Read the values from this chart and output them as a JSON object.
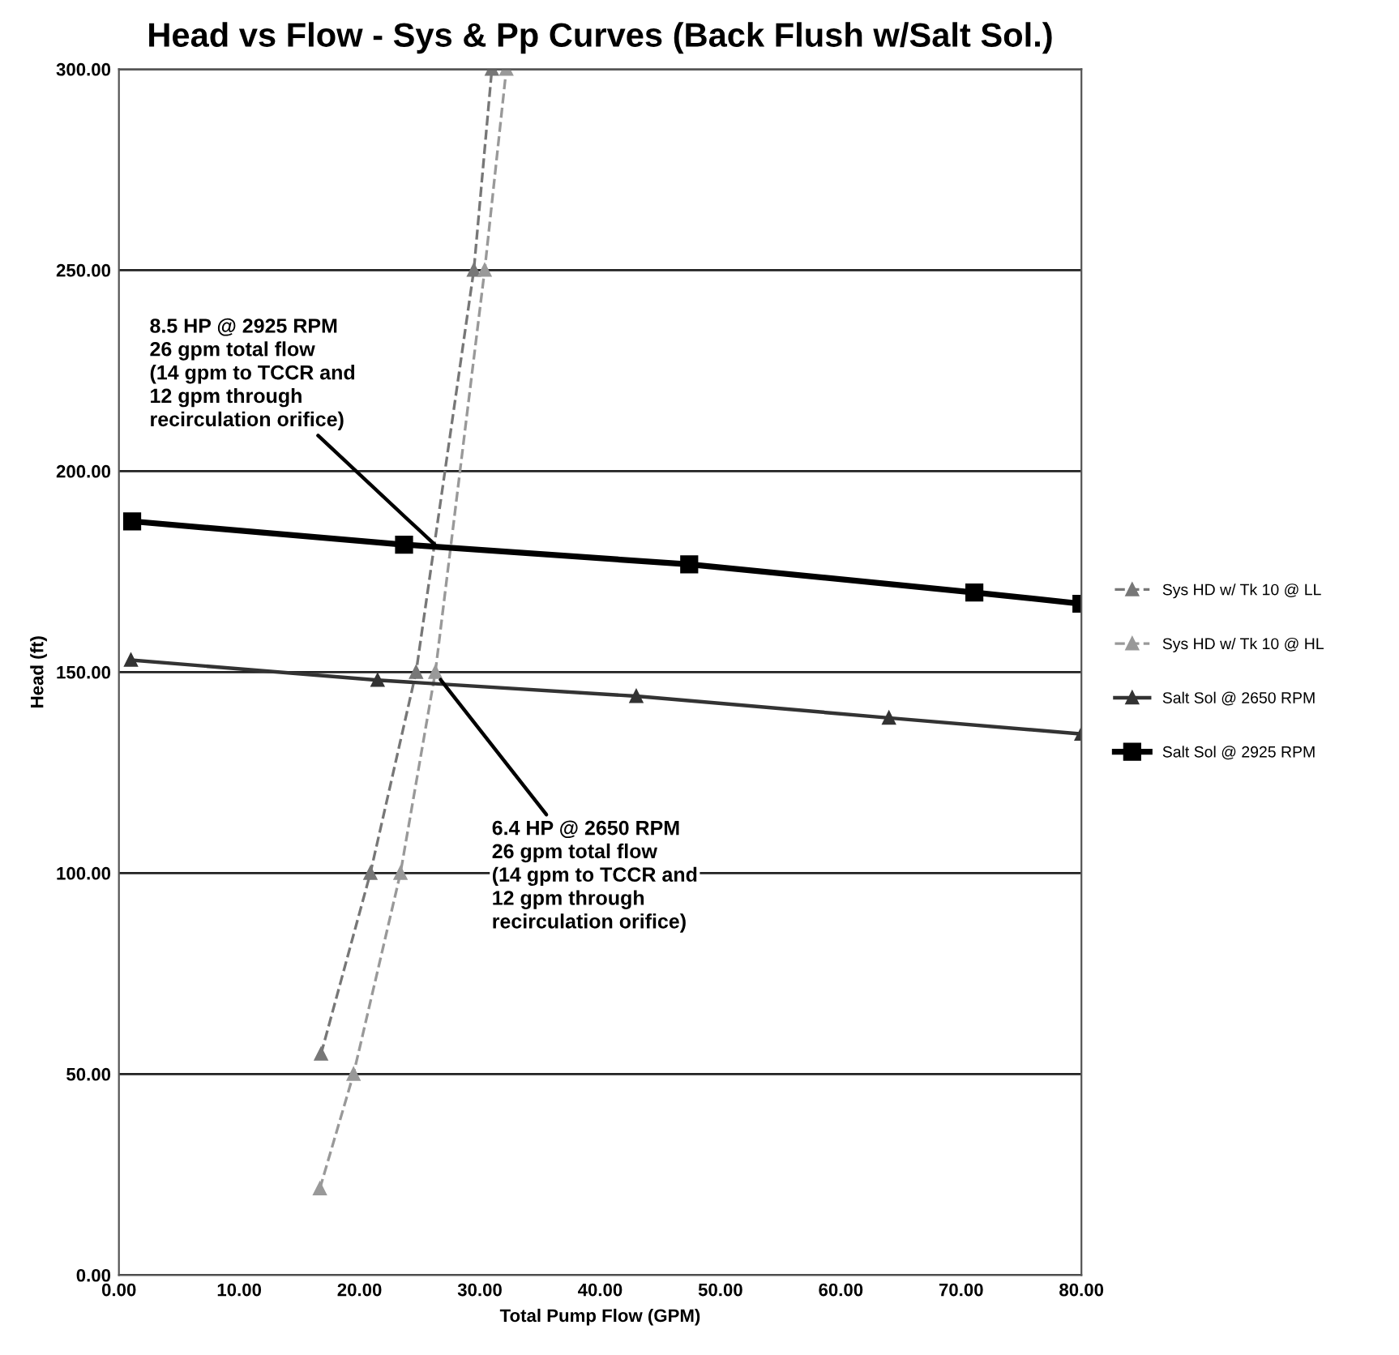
{
  "chart_data": {
    "type": "line",
    "title": "Head vs Flow - Sys & Pp Curves (Back Flush w/Salt Sol.)",
    "xlabel": "Total Pump Flow (GPM)",
    "ylabel": "Head (ft)",
    "xlim": [
      0,
      80
    ],
    "ylim": [
      0,
      300
    ],
    "xticks": [
      {
        "value": 0,
        "label": "0.00"
      },
      {
        "value": 10,
        "label": "10.00"
      },
      {
        "value": 20,
        "label": "20.00"
      },
      {
        "value": 30,
        "label": "30.00"
      },
      {
        "value": 40,
        "label": "40.00"
      },
      {
        "value": 50,
        "label": "50.00"
      },
      {
        "value": 60,
        "label": "60.00"
      },
      {
        "value": 70,
        "label": "70.00"
      },
      {
        "value": 80,
        "label": "80.00"
      }
    ],
    "yticks": [
      {
        "value": 0,
        "label": "0.00"
      },
      {
        "value": 50,
        "label": "50.00"
      },
      {
        "value": 100,
        "label": "100.00"
      },
      {
        "value": 150,
        "label": "150.00"
      },
      {
        "value": 200,
        "label": "200.00"
      },
      {
        "value": 250,
        "label": "250.00"
      },
      {
        "value": 300,
        "label": "300.00"
      }
    ],
    "grid": "y",
    "legend": "right",
    "series": [
      {
        "name": "Sys HD w/ Tk 10 @ LL",
        "color": "#777777",
        "line_style": "dashed",
        "marker": "triangle",
        "x": [
          16.8,
          20.9,
          24.7,
          29.5,
          31
        ],
        "values": [
          55,
          100,
          150,
          250,
          300
        ]
      },
      {
        "name": "Sys HD w/ Tk 10 @ HL",
        "color": "#999999",
        "line_style": "dashed",
        "marker": "triangle",
        "x": [
          16.7,
          19.5,
          23.4,
          26.3,
          30.4,
          32.2
        ],
        "values": [
          21.5,
          50,
          100,
          150,
          250,
          300
        ]
      },
      {
        "name": "Salt Sol @ 2650 RPM",
        "color": "#333333",
        "line_style": "solid",
        "marker": "triangle",
        "x": [
          1,
          21.5,
          43,
          64,
          80
        ],
        "values": [
          153,
          148,
          144,
          138.6,
          134.6
        ]
      },
      {
        "name": "Salt Sol @ 2925 RPM",
        "color": "#000000",
        "line_style": "solid",
        "marker": "square",
        "x": [
          1.1,
          23.7,
          47.4,
          71.1,
          80
        ],
        "values": [
          187.5,
          181.7,
          176.8,
          169.8,
          167
        ]
      }
    ],
    "annotations": [
      {
        "text": "8.5 HP @ 2925 RPM\n26 gpm total flow\n(14 gpm to TCCR and\n12 gpm through\nrecirculation orifice)",
        "x": 26.5,
        "y": 181
      },
      {
        "text": "6.4 HP @ 2650 RPM\n26 gpm total flow\n(14 gpm to TCCR and\n12 gpm through\nrecirculation orifice)",
        "x": 26.5,
        "y": 149
      }
    ]
  }
}
